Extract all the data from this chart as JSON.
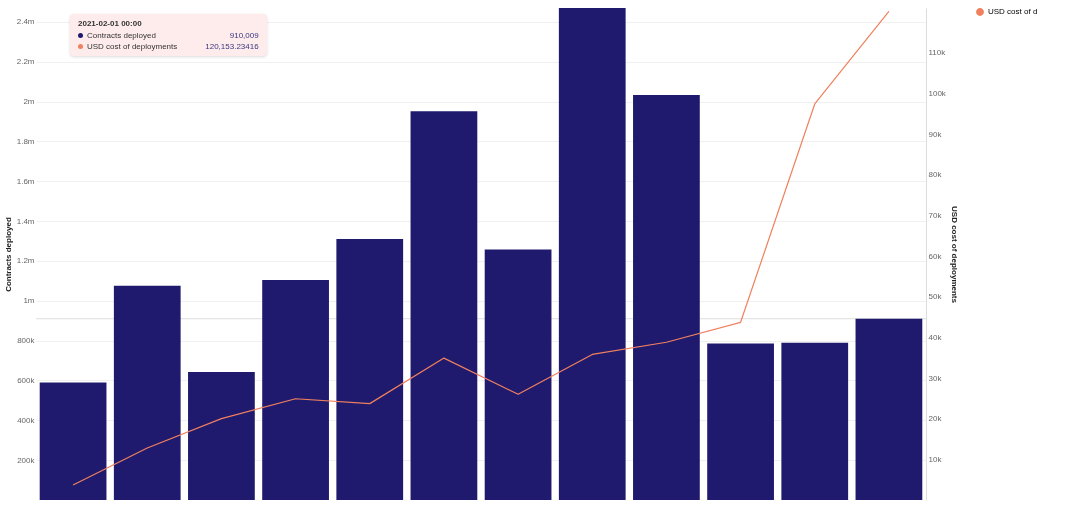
{
  "chart_data": {
    "type": "bar",
    "categories": [
      null,
      null,
      null,
      null,
      null,
      null,
      null,
      null,
      null,
      null,
      null,
      null
    ],
    "ylabel": "Contracts deployed",
    "y2label": "USD cost of deployments",
    "series": [
      {
        "color": "#1f1a6e",
        "values": [
          590000,
          1076000,
          643000,
          1105000,
          1310000,
          1952000,
          1257000,
          2470000,
          2033000,
          786000,
          790000,
          910000
        ]
      },
      {
        "type": "line",
        "name": "USD cost of d",
        "axis": "y2",
        "color": "#f0805e",
        "values": [
          3700,
          12800,
          20000,
          24900,
          23700,
          34900,
          26000,
          35800,
          38800,
          43700,
          97400,
          120200
        ]
      }
    ],
    "ylim": [
      0,
      2470000
    ],
    "yticks": [
      {
        "value": 200000,
        "label": "200k"
      },
      {
        "value": 400000,
        "label": "400k"
      },
      {
        "value": 600000,
        "label": "600k"
      },
      {
        "value": 800000,
        "label": "800k"
      },
      {
        "value": 1000000,
        "label": "1m"
      },
      {
        "value": 1200000,
        "label": "1.2m"
      },
      {
        "value": 1400000,
        "label": "1.4m"
      },
      {
        "value": 1600000,
        "label": "1.6m"
      },
      {
        "value": 1800000,
        "label": "1.8m"
      },
      {
        "value": 2000000,
        "label": "2m"
      },
      {
        "value": 2200000,
        "label": "2.2m"
      },
      {
        "value": 2400000,
        "label": "2.4m"
      }
    ],
    "y2lim": [
      0,
      121000
    ],
    "y2ticks": [
      {
        "value": 10000,
        "label": "10k"
      },
      {
        "value": 20000,
        "label": "20k"
      },
      {
        "value": 30000,
        "label": "30k"
      },
      {
        "value": 40000,
        "label": "40k"
      },
      {
        "value": 50000,
        "label": "50k"
      },
      {
        "value": 60000,
        "label": "60k"
      },
      {
        "value": 70000,
        "label": "70k"
      },
      {
        "value": 80000,
        "label": "80k"
      },
      {
        "value": 90000,
        "label": "90k"
      },
      {
        "value": 100000,
        "label": "100k"
      },
      {
        "value": 110000,
        "label": "110k"
      }
    ],
    "ref_lines": [
      {
        "axis": "y",
        "value": 910009,
        "color": "#dddddd"
      }
    ],
    "annotations": [
      "2021-02-01 00:00",
      "Contracts deployed",
      "910,009",
      "USD cost of deployments",
      "120,153.23416"
    ],
    "grid": "y",
    "legend": "top right"
  }
}
